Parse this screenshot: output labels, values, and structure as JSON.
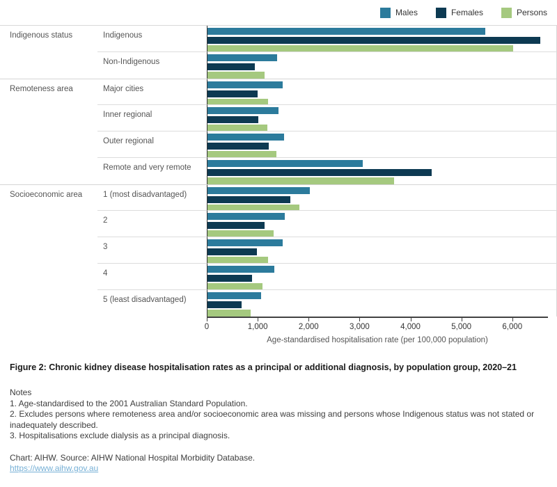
{
  "chart_data": {
    "type": "bar",
    "orientation": "horizontal",
    "xlabel": "Age-standardised hospitalisation rate (per 100,000 population)",
    "xlim": [
      0,
      6700
    ],
    "grid": "row-dividers-only",
    "legend_position": "top-right",
    "x_ticks": [
      {
        "value": 0,
        "label": "0"
      },
      {
        "value": 1000,
        "label": "1,000"
      },
      {
        "value": 2000,
        "label": "2,000"
      },
      {
        "value": 3000,
        "label": "3,000"
      },
      {
        "value": 4000,
        "label": "4,000"
      },
      {
        "value": 5000,
        "label": "5,000"
      },
      {
        "value": 6000,
        "label": "6,000"
      }
    ],
    "groups": [
      {
        "label": "Indigenous status",
        "categories": [
          "Indigenous",
          "Non-Indigenous"
        ]
      },
      {
        "label": "Remoteness area",
        "categories": [
          "Major cities",
          "Inner regional",
          "Outer regional",
          "Remote and very remote"
        ]
      },
      {
        "label": "Socioeconomic area",
        "categories": [
          "1 (most disadvantaged)",
          "2",
          "3",
          "4",
          "5 (least disadvantaged)"
        ]
      }
    ],
    "categories": [
      "Indigenous",
      "Non-Indigenous",
      "Major cities",
      "Inner regional",
      "Outer regional",
      "Remote and very remote",
      "1 (most disadvantaged)",
      "2",
      "3",
      "4",
      "5 (least disadvantaged)"
    ],
    "series": [
      {
        "name": "Males",
        "color": "#2c7b9c",
        "values": [
          5330,
          1340,
          1440,
          1360,
          1470,
          2980,
          1970,
          1480,
          1440,
          1290,
          1030
        ]
      },
      {
        "name": "Females",
        "color": "#0d3a52",
        "values": [
          6390,
          910,
          960,
          970,
          1180,
          4300,
          1590,
          1100,
          950,
          850,
          660
        ]
      },
      {
        "name": "Persons",
        "color": "#a5c97f",
        "values": [
          5870,
          1100,
          1170,
          1150,
          1320,
          3590,
          1760,
          1270,
          1160,
          1060,
          830
        ]
      }
    ]
  },
  "caption": "Figure 2: Chronic kidney disease hospitalisation rates as a principal or additional diagnosis, by population group, 2020–21",
  "notes": {
    "heading": "Notes",
    "items": [
      "1. Age-standardised to the 2001 Australian Standard Population.",
      "2. Excludes persons where remoteness area and/or socioeconomic area was missing and persons whose Indigenous status was not stated or inadequately described.",
      "3. Hospitalisations exclude dialysis as a principal diagnosis."
    ]
  },
  "footer": {
    "source": "Chart: AIHW. Source: AIHW National Hospital Morbidity Database.",
    "link": "https://www.aihw.gov.au"
  },
  "colors": {
    "axis_line": "#414141",
    "divider": "#d8d8d8",
    "label_text": "#555555",
    "tick_text": "#333333",
    "link": "#76b0d6"
  }
}
